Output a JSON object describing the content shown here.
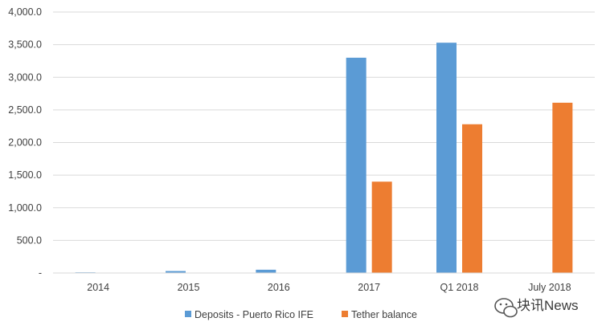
{
  "chart_data": {
    "type": "bar",
    "title": "",
    "xlabel": "",
    "ylabel": "",
    "categories": [
      "2014",
      "2015",
      "2016",
      "2017",
      "Q1 2018",
      "July 2018"
    ],
    "series": [
      {
        "name": "Deposits -  Puerto Rico IFE",
        "color": "#5B9BD5",
        "values": [
          10,
          30,
          50,
          3300,
          3530,
          0
        ]
      },
      {
        "name": "Tether balance",
        "color": "#ED7D31",
        "values": [
          0,
          5,
          5,
          1400,
          2280,
          2610
        ]
      }
    ],
    "ylim": [
      0,
      4000
    ],
    "yticks": [
      0,
      500,
      1000,
      1500,
      2000,
      2500,
      3000,
      3500,
      4000
    ],
    "ytick_labels": [
      "-",
      "500.0",
      "1,000.0",
      "1,500.0",
      "2,000.0",
      "2,500.0",
      "3,000.0",
      "3,500.0",
      "4,000.0"
    ],
    "grid": true,
    "legend_position": "bottom"
  },
  "watermark": {
    "text": "块讯News",
    "icon": "wechat-icon"
  }
}
